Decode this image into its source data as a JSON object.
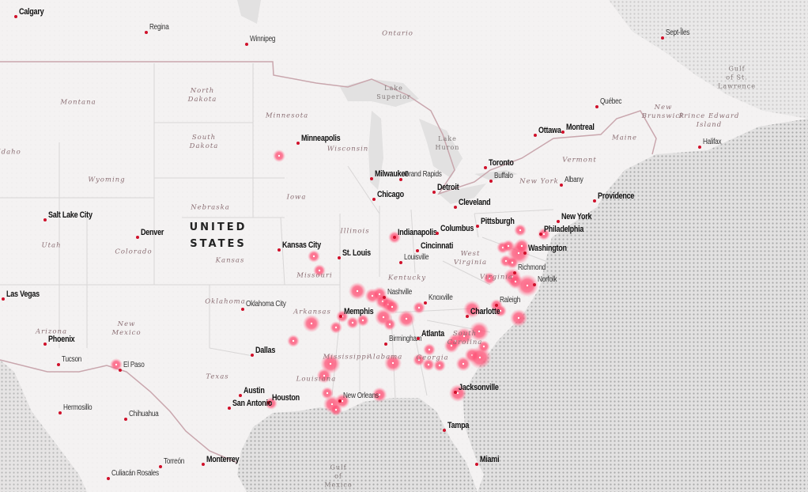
{
  "map": {
    "country_label": "UNITED\nSTATES",
    "colors": {
      "land": "#f4f2f2",
      "water": "#dcdcdc",
      "hotspot": "#ff4f74",
      "city_dot": "#d0102a",
      "border": "#c9a6ad"
    },
    "hotspot_icon": "glowing-circle",
    "cities": [
      {
        "name": "Calgary",
        "major": true
      },
      {
        "name": "Regina",
        "major": false
      },
      {
        "name": "Winnipeg",
        "major": false
      },
      {
        "name": "Sept-Îles",
        "major": false
      },
      {
        "name": "Québec",
        "major": false
      },
      {
        "name": "Ottawa",
        "major": true
      },
      {
        "name": "Montreal",
        "major": true
      },
      {
        "name": "Halifax",
        "major": false
      },
      {
        "name": "Minneapolis",
        "major": true
      },
      {
        "name": "Milwaukee",
        "major": true
      },
      {
        "name": "Grand Rapids",
        "major": false
      },
      {
        "name": "Toronto",
        "major": true
      },
      {
        "name": "Buffalo",
        "major": false
      },
      {
        "name": "Albany",
        "major": false
      },
      {
        "name": "Chicago",
        "major": true
      },
      {
        "name": "Detroit",
        "major": true
      },
      {
        "name": "Cleveland",
        "major": true
      },
      {
        "name": "Providence",
        "major": true
      },
      {
        "name": "Salt Lake City",
        "major": true
      },
      {
        "name": "Denver",
        "major": true
      },
      {
        "name": "Pittsburgh",
        "major": true
      },
      {
        "name": "New York",
        "major": true
      },
      {
        "name": "Indianapolis",
        "major": true
      },
      {
        "name": "Columbus",
        "major": true
      },
      {
        "name": "Philadelphia",
        "major": true
      },
      {
        "name": "Kansas City",
        "major": true
      },
      {
        "name": "St. Louis",
        "major": true
      },
      {
        "name": "Cincinnati",
        "major": true
      },
      {
        "name": "Louisville",
        "major": false
      },
      {
        "name": "Washington",
        "major": true
      },
      {
        "name": "Richmond",
        "major": false
      },
      {
        "name": "Norfolk",
        "major": false
      },
      {
        "name": "Las Vegas",
        "major": true
      },
      {
        "name": "Nashville",
        "major": false
      },
      {
        "name": "Knoxville",
        "major": false
      },
      {
        "name": "Oklahoma City",
        "major": false
      },
      {
        "name": "Memphis",
        "major": true
      },
      {
        "name": "Raleigh",
        "major": false
      },
      {
        "name": "Charlotte",
        "major": true
      },
      {
        "name": "Phoenix",
        "major": true
      },
      {
        "name": "Birmingham",
        "major": false
      },
      {
        "name": "Atlanta",
        "major": true
      },
      {
        "name": "Dallas",
        "major": true
      },
      {
        "name": "Tucson",
        "major": false
      },
      {
        "name": "El Paso",
        "major": false
      },
      {
        "name": "Jacksonville",
        "major": true
      },
      {
        "name": "Austin",
        "major": true
      },
      {
        "name": "New Orleans",
        "major": false
      },
      {
        "name": "Houston",
        "major": true
      },
      {
        "name": "San Antonio",
        "major": true
      },
      {
        "name": "Hermosillo",
        "major": false
      },
      {
        "name": "Chihuahua",
        "major": false
      },
      {
        "name": "Tampa",
        "major": true
      },
      {
        "name": "Torreón",
        "major": false
      },
      {
        "name": "Monterrey",
        "major": true
      },
      {
        "name": "Miami",
        "major": true
      },
      {
        "name": "Culiacán Rosales",
        "major": false
      }
    ],
    "regions": [
      "Ontario",
      "North\nDakota",
      "Montana",
      "Minnesota",
      "Wisconsin",
      "South\nDakota",
      "Idaho",
      "Wyoming",
      "Iowa",
      "Nebraska",
      "Illinois",
      "Utah",
      "Colorado",
      "Kansas",
      "Missouri",
      "Kentucky",
      "West\nVirginia",
      "Virginia",
      "Oklahoma",
      "Arkansas",
      "Arizona",
      "New\nMexico",
      "South\nCarolina",
      "Georgia",
      "Alabama",
      "Mississippi",
      "Texas",
      "Louisiana",
      "Lake\nSuperior",
      "Lake\nHuron",
      "New York",
      "Vermont",
      "Maine",
      "New\nBrunswick",
      "Prince Edward\nIsland",
      "Gulf\nof St.\nLawrence",
      "Gulf\nof\nMexico"
    ]
  }
}
